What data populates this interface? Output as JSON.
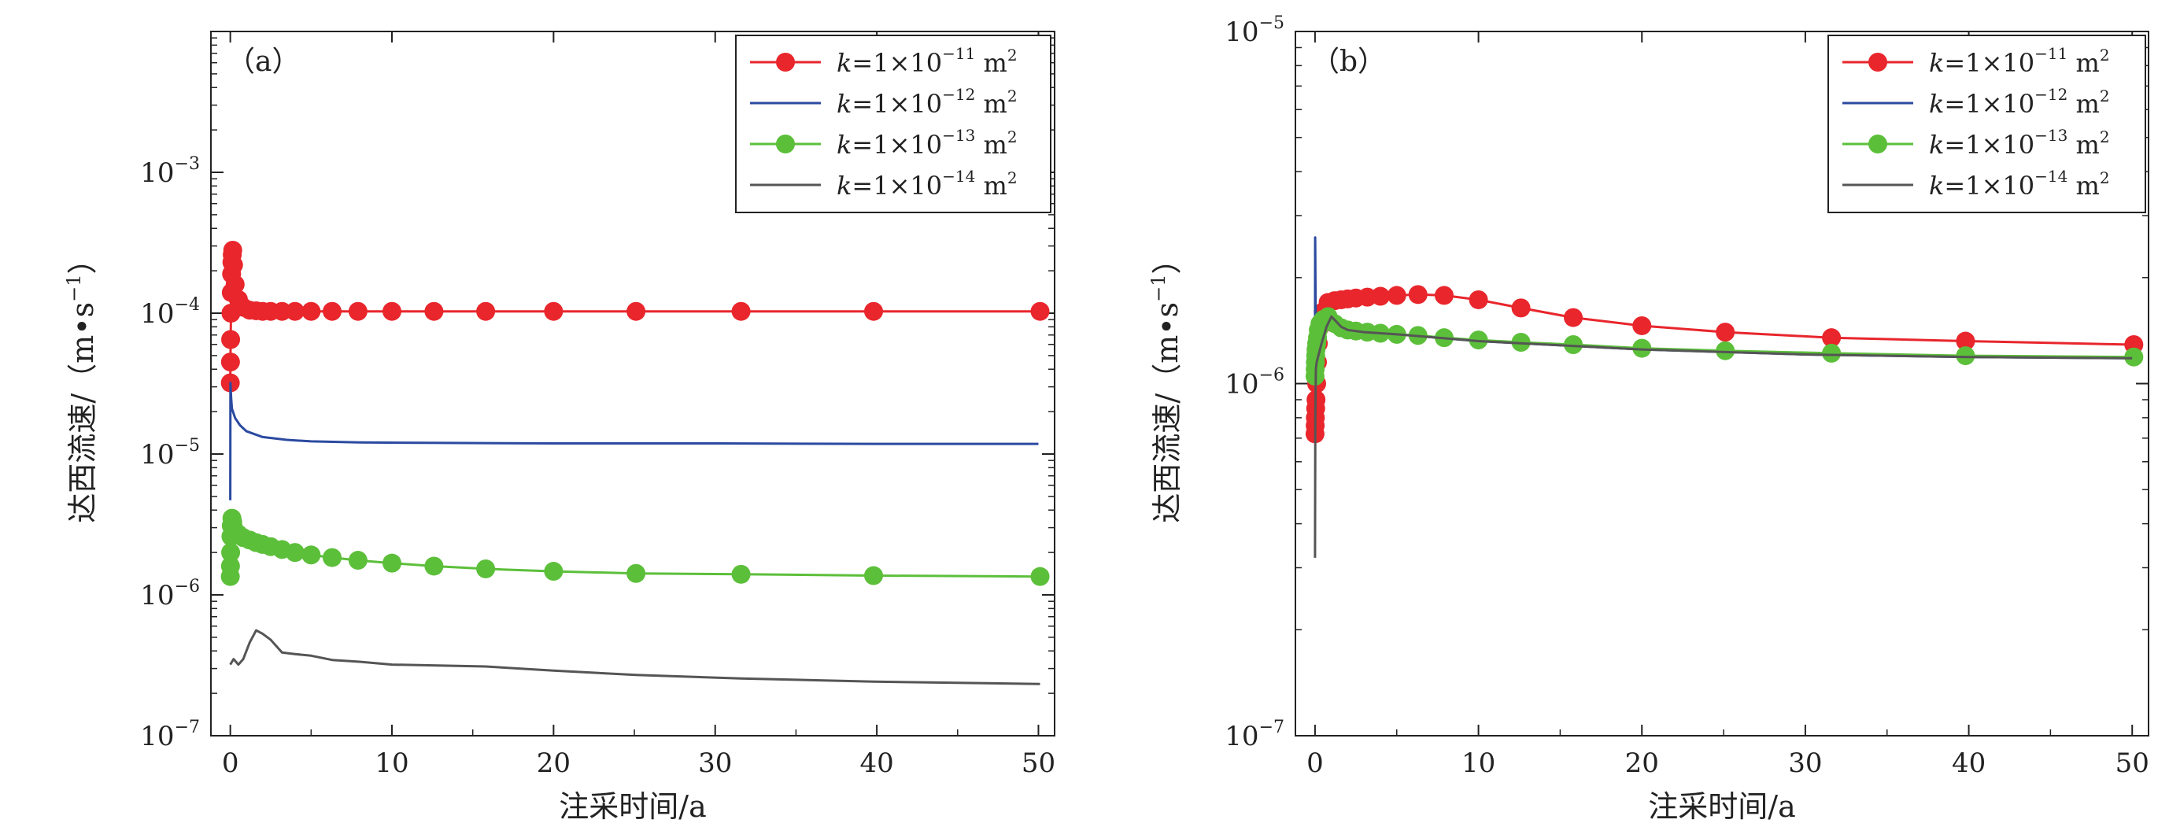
{
  "chart_data": [
    {
      "panel_label": "（a）",
      "type": "line",
      "xlabel": "注采时间/a",
      "ylabel": "达西流速/（m•s",
      "ylabel_sup": "−1",
      "ylabel_close": "）",
      "xlim": [
        -1.2,
        51
      ],
      "ylim": [
        1e-07,
        0.01
      ],
      "yscale": "log",
      "xticks": [
        0,
        10,
        20,
        30,
        40,
        50
      ],
      "xtick_labels": [
        "0",
        "10",
        "20",
        "30",
        "40",
        "50"
      ],
      "yticks": [
        1e-07,
        1e-06,
        1e-05,
        0.0001,
        0.001
      ],
      "ytick_mantissa": [
        "10",
        "10",
        "10",
        "10",
        "10"
      ],
      "ytick_exponents": [
        "−7",
        "−6",
        "−5",
        "−4",
        "−3"
      ],
      "legend_position": "top-right",
      "series": [
        {
          "name_k": "k",
          "name_mid": "=1×10",
          "name_exp": "−11",
          "name_unit": " m",
          "name_unit_exp": "2",
          "color": "#e8262c",
          "markers": true,
          "x": [
            0,
            0.01,
            0.02,
            0.04,
            0.06,
            0.08,
            0.1,
            0.12,
            0.15,
            0.2,
            0.3,
            0.5,
            0.8,
            1.2,
            1.6,
            2.0,
            2.5,
            3.2,
            4.0,
            5.0,
            6.3,
            7.9,
            10.0,
            12.6,
            15.8,
            20.0,
            25.1,
            31.6,
            39.8,
            50.1
          ],
          "y": [
            3.2e-05,
            4.5e-05,
            6.5e-05,
            0.0001,
            0.00014,
            0.00019,
            0.00023,
            0.00026,
            0.00028,
            0.00022,
            0.00016,
            0.000125,
            0.00011,
            0.000105,
            0.000104,
            0.000103,
            0.000103,
            0.000103,
            0.000103,
            0.000103,
            0.000103,
            0.000103,
            0.000103,
            0.000103,
            0.000103,
            0.000103,
            0.000103,
            0.000103,
            0.000103,
            0.000103
          ],
          "marker_x": [
            0,
            0.01,
            0.02,
            0.04,
            0.06,
            0.08,
            0.1,
            0.12,
            0.15,
            0.2,
            0.3,
            0.5,
            0.8,
            1.2,
            1.6,
            2.0,
            2.5,
            3.2,
            4.0,
            5.0,
            6.3,
            7.9,
            10.0,
            12.6,
            15.8,
            20.0,
            25.1,
            31.6,
            39.8,
            50.1
          ]
        },
        {
          "name_k": "k",
          "name_mid": "=1×10",
          "name_exp": "−12",
          "name_unit": " m",
          "name_unit_exp": "2",
          "color": "#2b4aa0",
          "markers": false,
          "x": [
            0,
            0.01,
            0.05,
            0.1,
            0.3,
            0.6,
            1.0,
            2.0,
            3.5,
            5.0,
            8.0,
            12.0,
            20.0,
            30.0,
            40.0,
            50.0
          ],
          "y": [
            4.7e-06,
            3.2e-05,
            2.5e-05,
            2.1e-05,
            1.8e-05,
            1.6e-05,
            1.45e-05,
            1.32e-05,
            1.26e-05,
            1.23e-05,
            1.21e-05,
            1.2e-05,
            1.19e-05,
            1.19e-05,
            1.18e-05,
            1.18e-05
          ]
        },
        {
          "name_k": "k",
          "name_mid": "=1×10",
          "name_exp": "−13",
          "name_unit": " m",
          "name_unit_exp": "2",
          "color": "#5cbf3a",
          "markers": true,
          "x": [
            0,
            0.01,
            0.02,
            0.04,
            0.06,
            0.1,
            0.15,
            0.2,
            0.3,
            0.5,
            0.8,
            1.2,
            1.6,
            2.0,
            2.5,
            3.2,
            4.0,
            5.0,
            6.3,
            7.9,
            10.0,
            12.6,
            15.8,
            20.0,
            25.1,
            31.6,
            39.8,
            50.1
          ],
          "y": [
            1.35e-06,
            1.6e-06,
            2e-06,
            2.6e-06,
            3.1e-06,
            3.5e-06,
            3.3e-06,
            3e-06,
            2.8e-06,
            2.7e-06,
            2.55e-06,
            2.45e-06,
            2.35e-06,
            2.28e-06,
            2.2e-06,
            2.1e-06,
            2e-06,
            1.92e-06,
            1.84e-06,
            1.76e-06,
            1.68e-06,
            1.6e-06,
            1.53e-06,
            1.47e-06,
            1.42e-06,
            1.4e-06,
            1.37e-06,
            1.35e-06
          ],
          "marker_x": [
            0,
            0.01,
            0.02,
            0.04,
            0.06,
            0.1,
            0.15,
            0.2,
            0.3,
            0.5,
            0.8,
            1.2,
            1.6,
            2.0,
            2.5,
            3.2,
            4.0,
            5.0,
            6.3,
            7.9,
            10.0,
            12.6,
            15.8,
            20.0,
            25.1,
            31.6,
            39.8,
            50.1
          ]
        },
        {
          "name_k": "k",
          "name_mid": "=1×10",
          "name_exp": "−14",
          "name_unit": " m",
          "name_unit_exp": "2",
          "color": "#555555",
          "markers": false,
          "x": [
            0,
            0.2,
            0.5,
            0.8,
            1.2,
            1.6,
            2.0,
            2.5,
            3.2,
            4.0,
            5.0,
            6.3,
            8.0,
            10.0,
            15.8,
            20.0,
            25.1,
            31.6,
            39.8,
            50.1
          ],
          "y": [
            3.2e-07,
            3.5e-07,
            3.2e-07,
            3.5e-07,
            4.6e-07,
            5.6e-07,
            5.3e-07,
            4.8e-07,
            3.9e-07,
            3.8e-07,
            3.7e-07,
            3.45e-07,
            3.35e-07,
            3.2e-07,
            3.1e-07,
            2.9e-07,
            2.7e-07,
            2.55e-07,
            2.42e-07,
            2.33e-07
          ]
        }
      ]
    },
    {
      "panel_label": "（b）",
      "type": "line",
      "xlabel": "注采时间/a",
      "ylabel": "达西流速/（m•s",
      "ylabel_sup": "−1",
      "ylabel_close": "）",
      "xlim": [
        -1.2,
        51
      ],
      "ylim": [
        1e-07,
        1e-05
      ],
      "yscale": "log",
      "xticks": [
        0,
        10,
        20,
        30,
        40,
        50
      ],
      "xtick_labels": [
        "0",
        "10",
        "20",
        "30",
        "40",
        "50"
      ],
      "yticks": [
        1e-07,
        1e-06,
        1e-05
      ],
      "ytick_mantissa": [
        "10",
        "10",
        "10"
      ],
      "ytick_exponents": [
        "−7",
        "−6",
        "−5"
      ],
      "legend_position": "top-right",
      "series": [
        {
          "name_k": "k",
          "name_mid": "=1×10",
          "name_exp": "−11",
          "name_unit": " m",
          "name_unit_exp": "2",
          "color": "#e8262c",
          "markers": true,
          "x": [
            0,
            0.01,
            0.02,
            0.04,
            0.06,
            0.1,
            0.15,
            0.2,
            0.3,
            0.5,
            0.8,
            1.2,
            1.6,
            2.0,
            2.5,
            3.2,
            4.0,
            5.0,
            6.3,
            7.9,
            10.0,
            12.6,
            15.8,
            20.0,
            25.1,
            31.6,
            39.8,
            50.1
          ],
          "y": [
            7.2e-07,
            7.6e-07,
            8e-07,
            8.5e-07,
            9e-07,
            1e-06,
            1.15e-06,
            1.3e-06,
            1.45e-06,
            1.6e-06,
            1.7e-06,
            1.72e-06,
            1.73e-06,
            1.74e-06,
            1.75e-06,
            1.76e-06,
            1.77e-06,
            1.78e-06,
            1.79e-06,
            1.78e-06,
            1.73e-06,
            1.64e-06,
            1.54e-06,
            1.46e-06,
            1.4e-06,
            1.35e-06,
            1.32e-06,
            1.29e-06
          ],
          "marker_x": [
            0,
            0.01,
            0.02,
            0.04,
            0.06,
            0.1,
            0.15,
            0.2,
            0.3,
            0.5,
            0.8,
            1.2,
            1.6,
            2.0,
            2.5,
            3.2,
            4.0,
            5.0,
            6.3,
            7.9,
            10.0,
            12.6,
            15.8,
            20.0,
            25.1,
            31.6,
            39.8,
            50.1
          ]
        },
        {
          "name_k": "k",
          "name_mid": "=1×10",
          "name_exp": "−12",
          "name_unit": " m",
          "name_unit_exp": "2",
          "color": "#2b4aa0",
          "markers": false,
          "x": [
            0,
            0.01,
            0.05,
            0.1,
            0.3,
            0.6,
            1.0,
            1.5,
            2.0,
            3.0,
            5.0,
            10.0,
            20.0,
            30.0,
            40.0,
            50.0
          ],
          "y": [
            1e-06,
            2.6e-06,
            1.25e-06,
            1.2e-06,
            1.35e-06,
            1.5e-06,
            1.55e-06,
            1.48e-06,
            1.44e-06,
            1.42e-06,
            1.38e-06,
            1.32e-06,
            1.25e-06,
            1.21e-06,
            1.19e-06,
            1.18e-06
          ]
        },
        {
          "name_k": "k",
          "name_mid": "=1×10",
          "name_exp": "−13",
          "name_unit": " m",
          "name_unit_exp": "2",
          "color": "#5cbf3a",
          "markers": true,
          "x": [
            0,
            0.01,
            0.02,
            0.04,
            0.06,
            0.1,
            0.15,
            0.2,
            0.3,
            0.5,
            0.8,
            1.2,
            1.6,
            2.0,
            2.5,
            3.2,
            4.0,
            5.0,
            6.3,
            7.9,
            10.0,
            12.6,
            15.8,
            20.0,
            25.1,
            31.6,
            39.8,
            50.1
          ],
          "y": [
            1.05e-06,
            1.1e-06,
            1.15e-06,
            1.2e-06,
            1.25e-06,
            1.3e-06,
            1.35e-06,
            1.42e-06,
            1.48e-06,
            1.52e-06,
            1.55e-06,
            1.48e-06,
            1.44e-06,
            1.42e-06,
            1.41e-06,
            1.4e-06,
            1.39e-06,
            1.38e-06,
            1.37e-06,
            1.35e-06,
            1.33e-06,
            1.31e-06,
            1.29e-06,
            1.26e-06,
            1.24e-06,
            1.22e-06,
            1.2e-06,
            1.19e-06
          ],
          "marker_x": [
            0,
            0.01,
            0.02,
            0.04,
            0.06,
            0.1,
            0.15,
            0.2,
            0.3,
            0.5,
            0.8,
            1.2,
            1.6,
            2.0,
            2.5,
            3.2,
            4.0,
            5.0,
            6.3,
            7.9,
            10.0,
            12.6,
            15.8,
            20.0,
            25.1,
            31.6,
            39.8,
            50.1
          ]
        },
        {
          "name_k": "k",
          "name_mid": "=1×10",
          "name_exp": "−14",
          "name_unit": " m",
          "name_unit_exp": "2",
          "color": "#555555",
          "markers": false,
          "x": [
            0,
            0.02,
            0.05,
            0.1,
            0.2,
            0.4,
            0.7,
            1.0,
            1.3,
            1.6,
            2.0,
            3.0,
            5.0,
            10.0,
            20.0,
            30.0,
            40.0,
            50.0
          ],
          "y": [
            3.2e-07,
            8e-07,
            1.1e-06,
            1.15e-06,
            1.2e-06,
            1.3e-06,
            1.45e-06,
            1.55e-06,
            1.5e-06,
            1.45e-06,
            1.42e-06,
            1.4e-06,
            1.38e-06,
            1.32e-06,
            1.25e-06,
            1.21e-06,
            1.19e-06,
            1.18e-06
          ]
        }
      ]
    }
  ]
}
